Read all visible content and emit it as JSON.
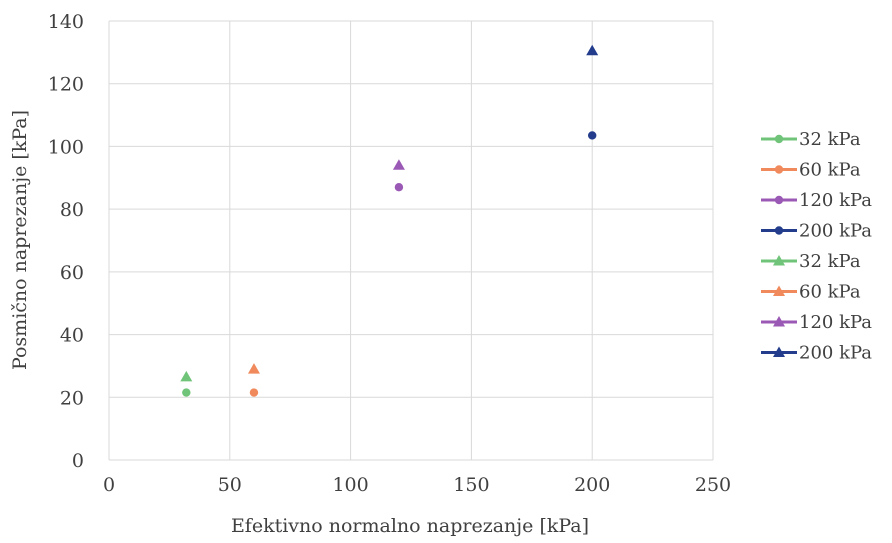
{
  "chart_data": {
    "type": "scatter",
    "xlabel": "Efektivno normalno naprezanje [kPa]",
    "ylabel": "Posmično naprezanje [kPa]",
    "xlim": [
      0,
      250
    ],
    "ylim": [
      0,
      140
    ],
    "x_ticks": [
      "0",
      "50",
      "100",
      "150",
      "200",
      "250"
    ],
    "y_ticks": [
      "0",
      "20",
      "40",
      "60",
      "80",
      "100",
      "120",
      "140"
    ],
    "grid": true,
    "legend_position": "right",
    "series": [
      {
        "name": "32 kPa",
        "marker": "circle",
        "color": "#70c47a",
        "points": [
          {
            "x": 32,
            "y": 21.5
          }
        ]
      },
      {
        "name": "60 kPa",
        "marker": "circle",
        "color": "#f08a5d",
        "points": [
          {
            "x": 60,
            "y": 21.5
          }
        ]
      },
      {
        "name": "120 kPa",
        "marker": "circle",
        "color": "#9b59b6",
        "points": [
          {
            "x": 120,
            "y": 87
          }
        ]
      },
      {
        "name": "200 kPa",
        "marker": "circle",
        "color": "#233d8c",
        "points": [
          {
            "x": 200,
            "y": 103.5
          }
        ]
      },
      {
        "name": "32 kPa",
        "marker": "triangle",
        "color": "#70c47a",
        "points": [
          {
            "x": 32,
            "y": 26.5
          }
        ]
      },
      {
        "name": "60 kPa",
        "marker": "triangle",
        "color": "#f08a5d",
        "points": [
          {
            "x": 60,
            "y": 29
          }
        ]
      },
      {
        "name": "120 kPa",
        "marker": "triangle",
        "color": "#9b59b6",
        "points": [
          {
            "x": 120,
            "y": 94
          }
        ]
      },
      {
        "name": "200 kPa",
        "marker": "triangle",
        "color": "#233d8c",
        "points": [
          {
            "x": 200,
            "y": 130.5
          }
        ]
      }
    ]
  }
}
